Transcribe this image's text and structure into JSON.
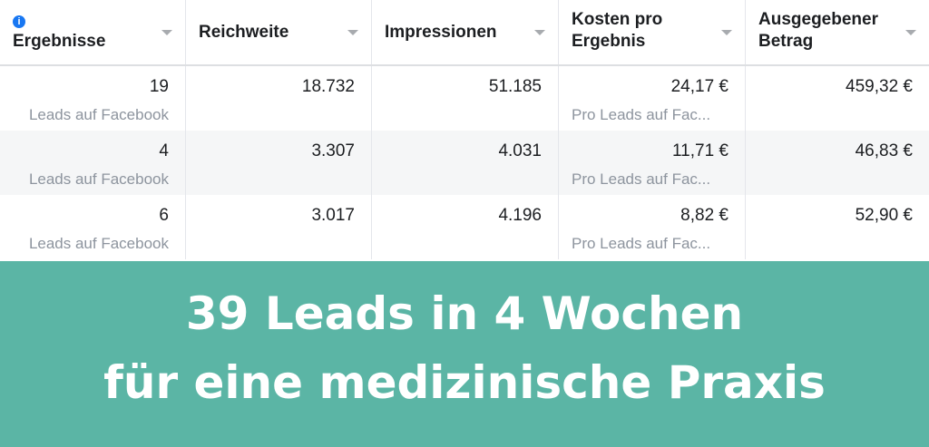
{
  "table": {
    "columns": [
      {
        "label": "Ergebnisse",
        "info_icon": "info-icon"
      },
      {
        "label": "Reichweite"
      },
      {
        "label": "Impressionen"
      },
      {
        "label": "Kosten pro Ergebnis"
      },
      {
        "label": "Ausgegebener Betrag"
      }
    ],
    "rows": [
      {
        "results": "19",
        "results_sub": "Leads auf Facebook",
        "reach": "18.732",
        "impressions": "51.185",
        "cost": "24,17 €",
        "cost_sub": "Pro Leads auf Fac...",
        "spent": "459,32 €"
      },
      {
        "results": "4",
        "results_sub": "Leads auf Facebook",
        "reach": "3.307",
        "impressions": "4.031",
        "cost": "11,71 €",
        "cost_sub": "Pro Leads auf Fac...",
        "spent": "46,83 €"
      },
      {
        "results": "6",
        "results_sub": "Leads auf Facebook",
        "reach": "3.017",
        "impressions": "4.196",
        "cost": "8,82 €",
        "cost_sub": "Pro Leads auf Fac...",
        "spent": "52,90 €"
      }
    ]
  },
  "banner": {
    "line1": "39 Leads in 4 Wochen",
    "line2": "für eine medizinische Praxis",
    "color": "#5bb5a5"
  }
}
